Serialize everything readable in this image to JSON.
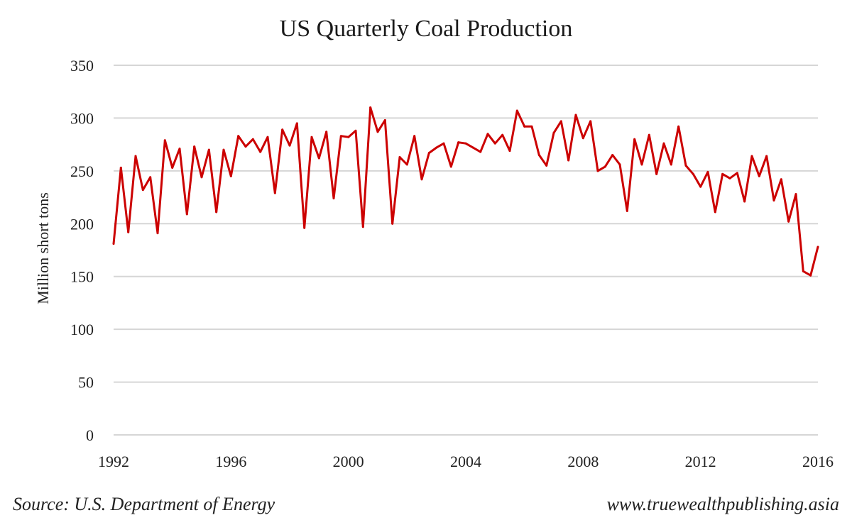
{
  "chart_data": {
    "type": "line",
    "title": "US Quarterly Coal Production",
    "xlabel": "",
    "ylabel": "Million short tons",
    "ylim": [
      0,
      350
    ],
    "yticks": [
      0,
      50,
      100,
      150,
      200,
      250,
      300,
      350
    ],
    "xlim": [
      1992,
      2016
    ],
    "xticks": [
      "1992",
      "1996",
      "2000",
      "2004",
      "2008",
      "2012",
      "2016"
    ],
    "grid": true,
    "series": [
      {
        "name": "US quarterly coal production",
        "color": "#cc0000",
        "x": [
          1992.0,
          1992.25,
          1992.5,
          1992.75,
          1993.0,
          1993.25,
          1993.5,
          1993.75,
          1994.0,
          1994.25,
          1994.5,
          1994.75,
          1995.0,
          1995.25,
          1995.5,
          1995.75,
          1996.0,
          1996.25,
          1996.5,
          1996.75,
          1997.0,
          1997.25,
          1997.5,
          1997.75,
          1998.0,
          1998.25,
          1998.5,
          1998.75,
          1999.0,
          1999.25,
          1999.5,
          1999.75,
          2000.0,
          2000.25,
          2000.5,
          2000.75,
          2001.0,
          2001.25,
          2001.5,
          2001.75,
          2002.0,
          2002.25,
          2002.5,
          2002.75,
          2003.0,
          2003.25,
          2003.5,
          2003.75,
          2004.0,
          2004.25,
          2004.5,
          2004.75,
          2005.0,
          2005.25,
          2005.5,
          2005.75,
          2006.0,
          2006.25,
          2006.5,
          2006.75,
          2007.0,
          2007.25,
          2007.5,
          2007.75,
          2008.0,
          2008.25,
          2008.5,
          2008.75,
          2009.0,
          2009.25,
          2009.5,
          2009.75,
          2010.0,
          2010.25,
          2010.5,
          2010.75,
          2011.0,
          2011.25,
          2011.5,
          2011.75,
          2012.0,
          2012.25,
          2012.5,
          2012.75,
          2013.0,
          2013.25,
          2013.5,
          2013.75,
          2014.0,
          2014.25,
          2014.5,
          2014.75,
          2015.0,
          2015.25,
          2015.5,
          2015.75,
          2016.0
        ],
        "values": [
          181,
          253,
          192,
          264,
          232,
          244,
          191,
          279,
          253,
          271,
          209,
          273,
          244,
          270,
          211,
          270,
          245,
          283,
          273,
          280,
          268,
          282,
          229,
          289,
          274,
          295,
          196,
          282,
          262,
          287,
          224,
          283,
          282,
          288,
          197,
          310,
          287,
          298,
          200,
          263,
          256,
          283,
          242,
          267,
          272,
          276,
          254,
          277,
          276,
          272,
          268,
          285,
          276,
          284,
          269,
          307,
          292,
          292,
          265,
          255,
          286,
          297,
          260,
          303,
          281,
          297,
          250,
          254,
          265,
          256,
          212,
          280,
          256,
          284,
          247,
          276,
          256,
          292,
          255,
          247,
          235,
          249,
          211,
          247,
          243,
          248,
          221,
          264,
          245,
          264,
          222,
          242,
          202,
          228,
          155,
          151,
          178
        ]
      }
    ]
  },
  "footer": {
    "source": "Source: U.S. Department of Energy",
    "website": "www.truewealthpublishing.asia"
  }
}
